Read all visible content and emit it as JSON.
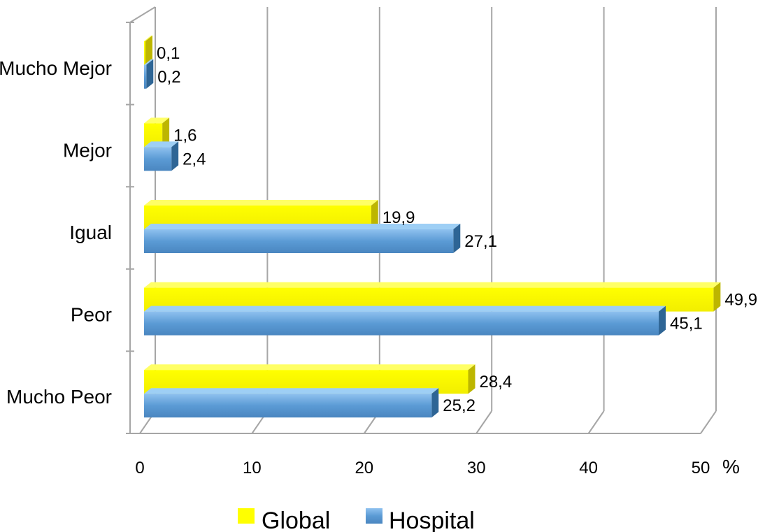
{
  "chart_data": {
    "type": "bar",
    "orientation": "horizontal",
    "style": "3d",
    "categories": [
      "Mucho Mejor",
      "Mejor",
      "Igual",
      "Peor",
      "Mucho Peor"
    ],
    "series": [
      {
        "name": "Global",
        "values": [
          0.1,
          1.6,
          19.9,
          49.9,
          28.4
        ],
        "labels": [
          "0,1",
          "1,6",
          "19,9",
          "49,9",
          "28,4"
        ],
        "color": "#ffff00",
        "side_color": "#b8b400"
      },
      {
        "name": "Hospital",
        "values": [
          0.2,
          2.4,
          27.1,
          45.1,
          25.2
        ],
        "labels": [
          "0,2",
          "2,4",
          "27,1",
          "45,1",
          "25,2"
        ],
        "color": "#5b9bd5",
        "side_color": "#2f5f8f"
      }
    ],
    "x_ticks": [
      "0",
      "10",
      "20",
      "30",
      "40",
      "50"
    ],
    "x_unit": "%",
    "xlim": [
      0,
      50
    ],
    "grid": true,
    "legend_position": "bottom"
  }
}
